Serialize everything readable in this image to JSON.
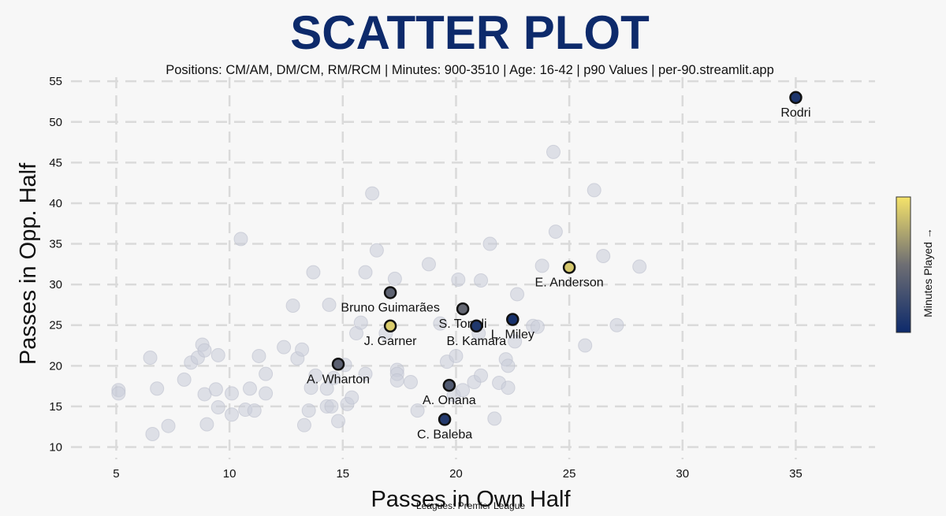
{
  "chart_data": {
    "type": "scatter",
    "title": "SCATTER PLOT",
    "subtitle": "Positions: CM/AM, DM/CM, RM/RCM  | Minutes: 900-3510 | Age: 16-42  | p90 Values | per-90.streamlit.app",
    "xlabel": "Passes in Own Half",
    "ylabel": "Passes in Opp. Half",
    "footer": "Leagues: Premier League",
    "colorbar_label": "Minutes Played →",
    "xlim": [
      3,
      38.5
    ],
    "ylim": [
      8.5,
      55.5
    ],
    "xticks": [
      5,
      10,
      15,
      20,
      25,
      30,
      35
    ],
    "yticks": [
      10,
      15,
      20,
      25,
      30,
      35,
      40,
      45,
      50,
      55
    ],
    "grid": true,
    "colors": {
      "title": "#0d2a6b",
      "background_points": "#c9ccd8",
      "cmap_low": "#0d2a6b",
      "cmap_mid": "#6e6e73",
      "cmap_high": "#f5e36a"
    },
    "background_points": [
      [
        5.1,
        17.0
      ],
      [
        5.1,
        16.6
      ],
      [
        6.5,
        21.0
      ],
      [
        6.6,
        11.6
      ],
      [
        6.8,
        17.2
      ],
      [
        7.3,
        12.6
      ],
      [
        8.0,
        18.3
      ],
      [
        8.3,
        20.4
      ],
      [
        8.6,
        21.0
      ],
      [
        8.8,
        22.6
      ],
      [
        8.9,
        21.9
      ],
      [
        8.9,
        16.5
      ],
      [
        9.0,
        12.8
      ],
      [
        9.4,
        17.1
      ],
      [
        9.5,
        14.9
      ],
      [
        9.5,
        21.3
      ],
      [
        10.1,
        16.6
      ],
      [
        10.1,
        14.0
      ],
      [
        10.5,
        35.6
      ],
      [
        10.7,
        14.6
      ],
      [
        10.9,
        17.2
      ],
      [
        11.1,
        14.5
      ],
      [
        11.3,
        21.2
      ],
      [
        11.6,
        19.0
      ],
      [
        11.6,
        16.6
      ],
      [
        12.4,
        22.3
      ],
      [
        12.8,
        27.4
      ],
      [
        13.0,
        20.9
      ],
      [
        13.2,
        22.0
      ],
      [
        13.3,
        12.7
      ],
      [
        13.5,
        14.5
      ],
      [
        13.6,
        17.3
      ],
      [
        13.7,
        31.5
      ],
      [
        13.8,
        18.8
      ],
      [
        14.3,
        15.0
      ],
      [
        14.3,
        17.2
      ],
      [
        14.4,
        27.5
      ],
      [
        14.5,
        15.0
      ],
      [
        14.6,
        18.5
      ],
      [
        14.8,
        13.2
      ],
      [
        15.1,
        20.1
      ],
      [
        15.2,
        15.3
      ],
      [
        15.4,
        16.1
      ],
      [
        15.6,
        24.0
      ],
      [
        15.8,
        25.3
      ],
      [
        16.0,
        31.5
      ],
      [
        16.0,
        19.0
      ],
      [
        16.3,
        41.2
      ],
      [
        16.5,
        34.2
      ],
      [
        16.9,
        24.0
      ],
      [
        17.3,
        30.7
      ],
      [
        17.4,
        19.5
      ],
      [
        17.4,
        19.0
      ],
      [
        17.4,
        18.2
      ],
      [
        18.0,
        18.0
      ],
      [
        18.3,
        14.5
      ],
      [
        18.8,
        32.5
      ],
      [
        19.3,
        25.2
      ],
      [
        19.6,
        20.5
      ],
      [
        19.9,
        16.4
      ],
      [
        20.0,
        21.2
      ],
      [
        20.1,
        30.6
      ],
      [
        20.3,
        17.0
      ],
      [
        20.8,
        18.0
      ],
      [
        21.0,
        24.0
      ],
      [
        21.1,
        18.8
      ],
      [
        21.1,
        30.5
      ],
      [
        21.5,
        35.0
      ],
      [
        21.7,
        13.5
      ],
      [
        21.9,
        17.9
      ],
      [
        22.2,
        20.8
      ],
      [
        22.3,
        20.0
      ],
      [
        22.3,
        17.3
      ],
      [
        22.6,
        23.0
      ],
      [
        22.7,
        28.8
      ],
      [
        23.4,
        24.9
      ],
      [
        23.6,
        24.8
      ],
      [
        23.8,
        32.3
      ],
      [
        24.3,
        46.3
      ],
      [
        24.4,
        36.5
      ],
      [
        25.7,
        22.5
      ],
      [
        26.1,
        41.6
      ],
      [
        26.5,
        33.5
      ],
      [
        27.1,
        25.0
      ],
      [
        28.1,
        32.2
      ]
    ],
    "highlighted": [
      {
        "name": "Rodri",
        "x": 35.0,
        "y": 53.0,
        "minutes_norm": 0.08,
        "label_pos": "below"
      },
      {
        "name": "E. Anderson",
        "x": 25.0,
        "y": 32.1,
        "minutes_norm": 0.88,
        "label_pos": "below"
      },
      {
        "name": "Bruno Guimarães",
        "x": 17.1,
        "y": 29.0,
        "minutes_norm": 0.42,
        "label_pos": "below"
      },
      {
        "name": "S. Tonali",
        "x": 20.3,
        "y": 27.0,
        "minutes_norm": 0.45,
        "label_pos": "below"
      },
      {
        "name": "B. Kamara",
        "x": 20.9,
        "y": 24.9,
        "minutes_norm": 0.1,
        "label_pos": "below"
      },
      {
        "name": "L. Miley",
        "x": 22.5,
        "y": 25.7,
        "minutes_norm": 0.05,
        "label_pos": "below"
      },
      {
        "name": "J. Garner",
        "x": 17.1,
        "y": 24.9,
        "minutes_norm": 0.9,
        "label_pos": "below"
      },
      {
        "name": "A. Wharton",
        "x": 14.8,
        "y": 20.2,
        "minutes_norm": 0.4,
        "label_pos": "below"
      },
      {
        "name": "A. Onana",
        "x": 19.7,
        "y": 17.6,
        "minutes_norm": 0.35,
        "label_pos": "below"
      },
      {
        "name": "C. Baleba",
        "x": 19.5,
        "y": 13.4,
        "minutes_norm": 0.12,
        "label_pos": "below"
      }
    ]
  }
}
